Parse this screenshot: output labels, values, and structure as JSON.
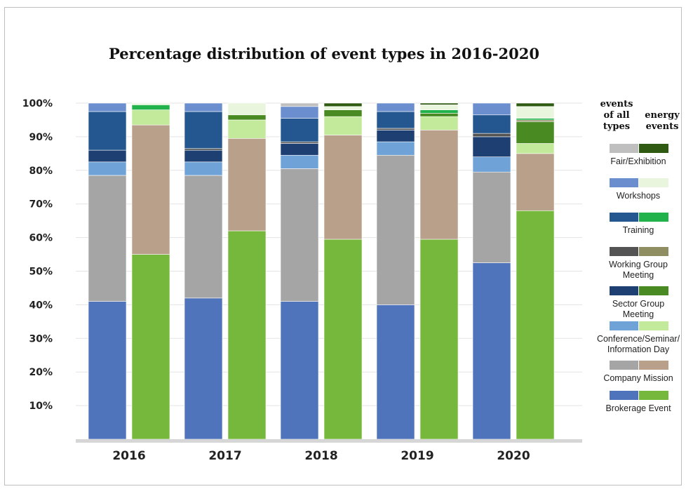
{
  "chart_data": {
    "type": "bar",
    "stacked": true,
    "title": "Percentage distribution of event types in 2016-2020",
    "categories": [
      "2016",
      "2017",
      "2018",
      "2019",
      "2020"
    ],
    "yticks": [
      "10%",
      "20%",
      "30%",
      "40%",
      "50%",
      "60%",
      "70%",
      "80%",
      "90%",
      "100%"
    ],
    "ylim": [
      0,
      100
    ],
    "grid": true,
    "legend": {
      "position": "right",
      "header_left": [
        "events",
        "of all",
        "types"
      ],
      "header_right": [
        "energy",
        "events"
      ]
    },
    "series_order": [
      "Brokerage Event",
      "Company Mission",
      "Conference/Seminar/ Information Day",
      "Sector Group Meeting",
      "Working Group Meeting",
      "Training",
      "Workshops",
      "Fair/Exhibition"
    ],
    "colors": {
      "all": [
        "#4f74bb",
        "#a5a5a5",
        "#6fa3d8",
        "#1d3f72",
        "#545454",
        "#24578f",
        "#6b8fce",
        "#bfbfbf"
      ],
      "energy": [
        "#76b83c",
        "#b8a08a",
        "#c3ea9a",
        "#4a8a22",
        "#8e8e62",
        "#22b24c",
        "#eaf5dd",
        "#2f5a12"
      ]
    },
    "series_all": {
      "2016": [
        41,
        37.5,
        4,
        3.5,
        0,
        11.5,
        2.5,
        0
      ],
      "2017": [
        42,
        36.5,
        4,
        3.5,
        0.5,
        11,
        2.5,
        0
      ],
      "2018": [
        41,
        39.5,
        4,
        3.5,
        0.5,
        7,
        3.5,
        1
      ],
      "2019": [
        40,
        44.5,
        4,
        3.5,
        0.5,
        5,
        2.5,
        0
      ],
      "2020": [
        52.5,
        27,
        4.5,
        6,
        1,
        5.5,
        3.5,
        0
      ]
    },
    "series_energy": {
      "2016": [
        55,
        38.5,
        4.5,
        0,
        0,
        1.5,
        0.5,
        0
      ],
      "2017": [
        62,
        27.5,
        5.5,
        1.5,
        0,
        0,
        3.5,
        0
      ],
      "2018": [
        59.5,
        31,
        5.5,
        2,
        0,
        0,
        1,
        1
      ],
      "2019": [
        59.5,
        32.5,
        4,
        1,
        0,
        1,
        1.5,
        0.5
      ],
      "2020": [
        68,
        17,
        3,
        6.5,
        0.5,
        0.5,
        3.5,
        1
      ]
    }
  }
}
